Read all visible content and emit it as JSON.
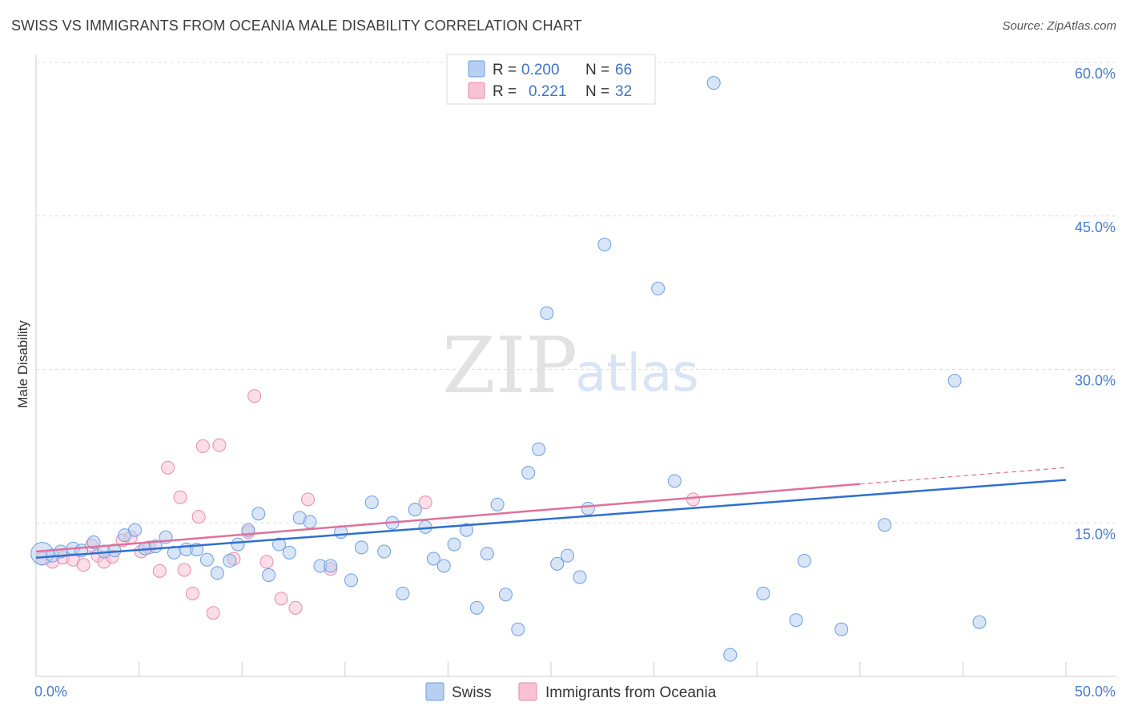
{
  "title": "SWISS VS IMMIGRANTS FROM OCEANIA MALE DISABILITY CORRELATION CHART",
  "source": "Source: ZipAtlas.com",
  "watermark": {
    "zip": "ZIP",
    "atlas": "atlas"
  },
  "colors": {
    "swiss_fill": "#b7d0f1",
    "swiss_stroke": "#6e9de0",
    "swiss_line": "#2f6fcf",
    "oceania_fill": "#f7c2d3",
    "oceania_stroke": "#e88aa8",
    "oceania_line": "#e0709a",
    "grid": "#dddddd",
    "tick_label": "#4a7cc9"
  },
  "legend": {
    "rows": [
      {
        "r_label": "R =",
        "r_value": "0.200",
        "n_label": "N =",
        "n_value": "66"
      },
      {
        "r_label": "R =",
        "r_value": "0.221",
        "n_label": "N =",
        "n_value": "32"
      }
    ]
  },
  "chart_data": {
    "type": "scatter",
    "ylabel": "Male Disability",
    "xlim": [
      0,
      50
    ],
    "ylim": [
      0,
      60
    ],
    "x_tick_labels": [
      {
        "value": 0,
        "label": "0.0%"
      },
      {
        "value": 50,
        "label": "50.0%"
      }
    ],
    "y_tick_labels": [
      {
        "value": 15,
        "label": "15.0%"
      },
      {
        "value": 30,
        "label": "30.0%"
      },
      {
        "value": 45,
        "label": "45.0%"
      },
      {
        "value": 60,
        "label": "60.0%"
      }
    ],
    "grid": true,
    "legend_position": "top-center",
    "series": [
      {
        "name": "Swiss",
        "trend": {
          "x0": 0,
          "y0": 11.6,
          "x1": 50,
          "y1": 19.2
        },
        "points": [
          [
            0.3,
            12.0
          ],
          [
            0.8,
            11.8
          ],
          [
            1.2,
            12.2
          ],
          [
            1.8,
            12.5
          ],
          [
            2.2,
            12.3
          ],
          [
            2.8,
            13.1
          ],
          [
            3.3,
            12.2
          ],
          [
            3.8,
            12.3
          ],
          [
            4.3,
            13.8
          ],
          [
            4.8,
            14.3
          ],
          [
            5.3,
            12.5
          ],
          [
            5.8,
            12.7
          ],
          [
            6.3,
            13.6
          ],
          [
            6.7,
            12.1
          ],
          [
            7.3,
            12.4
          ],
          [
            7.8,
            12.4
          ],
          [
            8.3,
            11.4
          ],
          [
            8.8,
            10.1
          ],
          [
            9.4,
            11.3
          ],
          [
            9.8,
            12.9
          ],
          [
            10.3,
            14.3
          ],
          [
            10.8,
            15.9
          ],
          [
            11.3,
            9.9
          ],
          [
            11.8,
            12.9
          ],
          [
            12.3,
            12.1
          ],
          [
            12.8,
            15.5
          ],
          [
            13.3,
            15.1
          ],
          [
            13.8,
            10.8
          ],
          [
            14.3,
            10.8
          ],
          [
            14.8,
            14.1
          ],
          [
            15.3,
            9.4
          ],
          [
            15.8,
            12.6
          ],
          [
            16.3,
            17.0
          ],
          [
            16.9,
            12.2
          ],
          [
            17.3,
            15.0
          ],
          [
            17.8,
            8.1
          ],
          [
            18.4,
            16.3
          ],
          [
            18.9,
            14.6
          ],
          [
            19.3,
            11.5
          ],
          [
            19.8,
            10.8
          ],
          [
            20.3,
            12.9
          ],
          [
            20.9,
            14.3
          ],
          [
            21.4,
            6.7
          ],
          [
            21.9,
            12.0
          ],
          [
            22.4,
            16.8
          ],
          [
            22.8,
            8.0
          ],
          [
            23.4,
            4.6
          ],
          [
            23.9,
            19.9
          ],
          [
            24.4,
            22.2
          ],
          [
            24.8,
            35.5
          ],
          [
            25.3,
            11.0
          ],
          [
            25.8,
            11.8
          ],
          [
            26.4,
            9.7
          ],
          [
            26.8,
            16.4
          ],
          [
            27.6,
            42.2
          ],
          [
            30.2,
            37.9
          ],
          [
            31.0,
            19.1
          ],
          [
            32.9,
            58.0
          ],
          [
            33.7,
            2.1
          ],
          [
            35.3,
            8.1
          ],
          [
            36.9,
            5.5
          ],
          [
            37.3,
            11.3
          ],
          [
            39.1,
            4.6
          ],
          [
            41.2,
            14.8
          ],
          [
            44.6,
            28.9
          ],
          [
            45.8,
            5.3
          ]
        ]
      },
      {
        "name": "Immigrants from Oceania",
        "trend": {
          "x0": 0,
          "y0": 12.2,
          "x1": 40,
          "y1": 18.8,
          "dash_to_x": 50,
          "dash_to_y": 20.4
        },
        "points": [
          [
            0.3,
            11.5
          ],
          [
            0.8,
            11.2
          ],
          [
            1.3,
            11.6
          ],
          [
            1.8,
            11.4
          ],
          [
            2.3,
            10.9
          ],
          [
            2.7,
            12.8
          ],
          [
            3.0,
            11.8
          ],
          [
            3.3,
            11.2
          ],
          [
            3.7,
            11.7
          ],
          [
            4.2,
            13.3
          ],
          [
            4.6,
            13.6
          ],
          [
            5.1,
            12.2
          ],
          [
            5.5,
            12.6
          ],
          [
            6.0,
            10.3
          ],
          [
            6.4,
            20.4
          ],
          [
            7.0,
            17.5
          ],
          [
            7.2,
            10.4
          ],
          [
            7.6,
            8.1
          ],
          [
            7.9,
            15.6
          ],
          [
            8.1,
            22.5
          ],
          [
            8.6,
            6.2
          ],
          [
            8.9,
            22.6
          ],
          [
            9.6,
            11.5
          ],
          [
            10.3,
            14.1
          ],
          [
            10.6,
            27.4
          ],
          [
            11.2,
            11.2
          ],
          [
            11.9,
            7.6
          ],
          [
            12.6,
            6.7
          ],
          [
            13.2,
            17.3
          ],
          [
            14.3,
            10.5
          ],
          [
            18.9,
            17.0
          ],
          [
            31.9,
            17.3
          ]
        ]
      }
    ]
  },
  "bottom_legend": {
    "items": [
      {
        "label": "Swiss"
      },
      {
        "label": "Immigrants from Oceania"
      }
    ]
  }
}
